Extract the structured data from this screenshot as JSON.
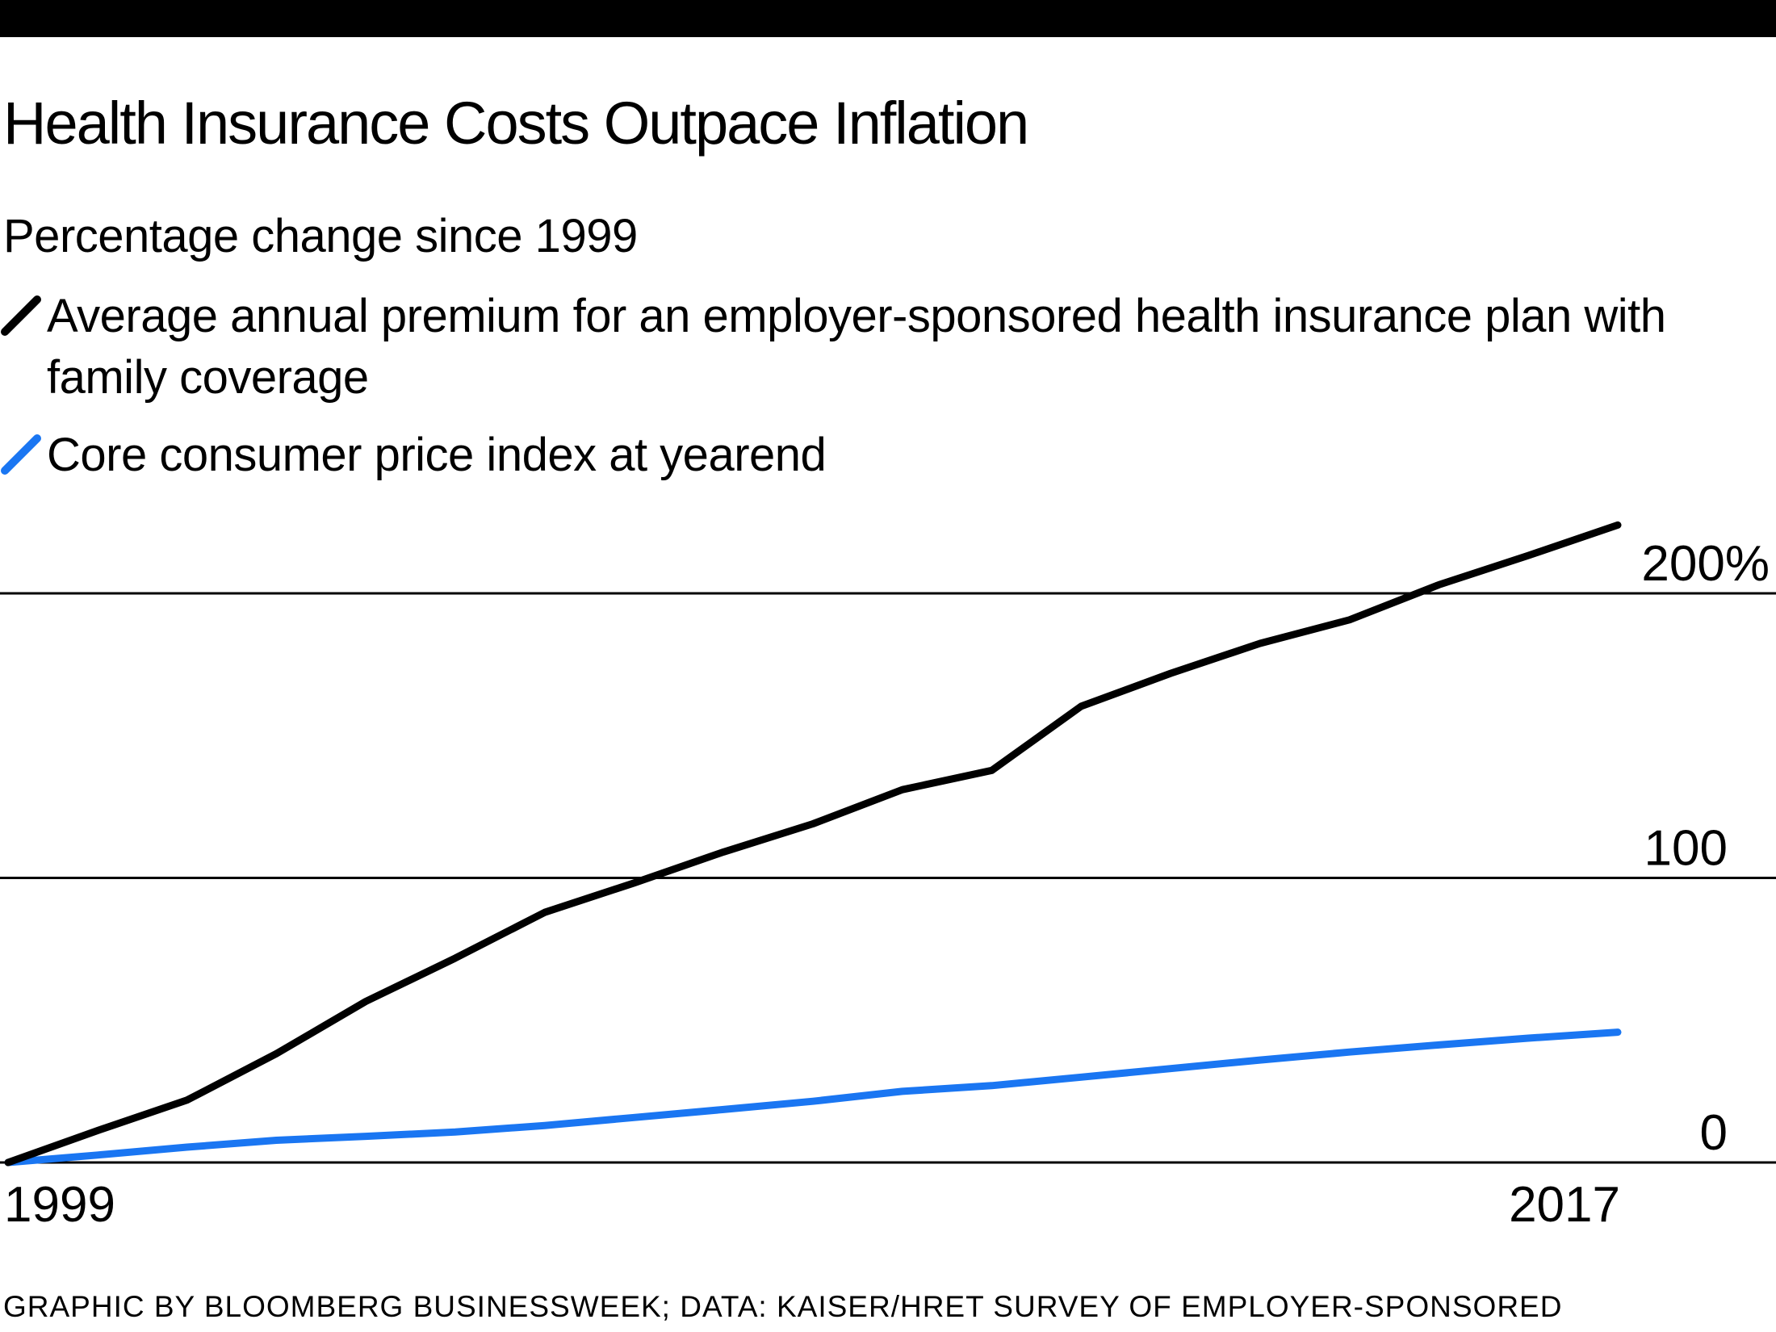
{
  "colors": {
    "ink": "#000000",
    "accent_blue": "#1a76f2",
    "background": "#ffffff"
  },
  "header": {
    "title": "Health Insurance Costs Outpace Inflation",
    "subtitle": "Percentage change since 1999"
  },
  "legend": {
    "items": [
      {
        "label": "Average annual premium for an employer-sponsored health insurance plan with family coverage",
        "color": "#000000",
        "icon": "slash-icon"
      },
      {
        "label": "Core consumer price index at yearend",
        "color": "#1a76f2",
        "icon": "slash-icon"
      }
    ]
  },
  "footer": {
    "credit": "GRAPHIC BY BLOOMBERG BUSINESSWEEK; DATA: KAISER/HRET SURVEY OF EMPLOYER-SPONSORED"
  },
  "chart_data": {
    "type": "line",
    "title": "Health Insurance Costs Outpace Inflation",
    "xlabel": "",
    "ylabel": "Percentage change since 1999",
    "x": [
      1999,
      2000,
      2001,
      2002,
      2003,
      2004,
      2005,
      2006,
      2007,
      2008,
      2009,
      2010,
      2011,
      2012,
      2013,
      2014,
      2015,
      2016,
      2017
    ],
    "series": [
      {
        "name": "Average annual premium for an employer-sponsored health insurance plan with family coverage",
        "color": "#000000",
        "values": [
          0,
          11.2,
          21.9,
          38.2,
          56.6,
          71.8,
          87.9,
          98.2,
          109.1,
          119.0,
          131.0,
          137.8,
          160.3,
          171.9,
          182.4,
          190.7,
          203.0,
          213.3,
          224.0
        ]
      },
      {
        "name": "Core consumer price index at yearend",
        "color": "#1a76f2",
        "values": [
          0,
          2.6,
          5.4,
          7.8,
          9.2,
          10.7,
          13.0,
          15.8,
          18.6,
          21.5,
          25.0,
          27.0,
          30.0,
          33.0,
          36.0,
          38.8,
          41.3,
          43.7,
          45.8
        ]
      }
    ],
    "ylim": [
      0,
      229
    ],
    "yticks": [
      {
        "value": 0,
        "label": "0"
      },
      {
        "value": 100,
        "label": "100"
      },
      {
        "value": 200,
        "label": "200%"
      }
    ],
    "xticks": [
      {
        "value": 1999,
        "label": "1999"
      },
      {
        "value": 2017,
        "label": "2017"
      }
    ],
    "grid": "horizontal",
    "legend_position": "top-left"
  }
}
